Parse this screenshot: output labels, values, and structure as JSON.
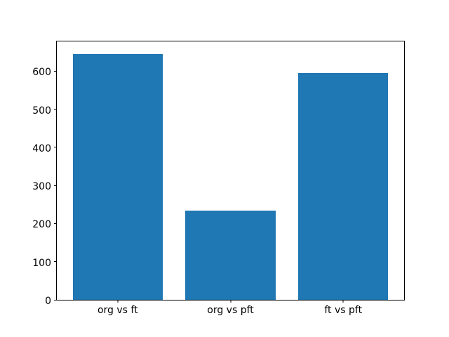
{
  "figure": {
    "background": "#ffffff",
    "spine_color": "#000000",
    "tick_color": "#000000"
  },
  "chart_data": {
    "type": "bar",
    "categories": [
      "org vs ft",
      "org vs pft",
      "ft vs pft"
    ],
    "values": [
      645,
      234,
      596
    ],
    "bar_color": "#1f77b4",
    "bar_width": 0.8,
    "xlim": [
      -0.54,
      2.54
    ],
    "ylim": [
      0,
      678
    ],
    "yticks": [
      0,
      100,
      200,
      300,
      400,
      500,
      600
    ],
    "title": "",
    "xlabel": "",
    "ylabel": "",
    "grid": false,
    "legend": null
  }
}
